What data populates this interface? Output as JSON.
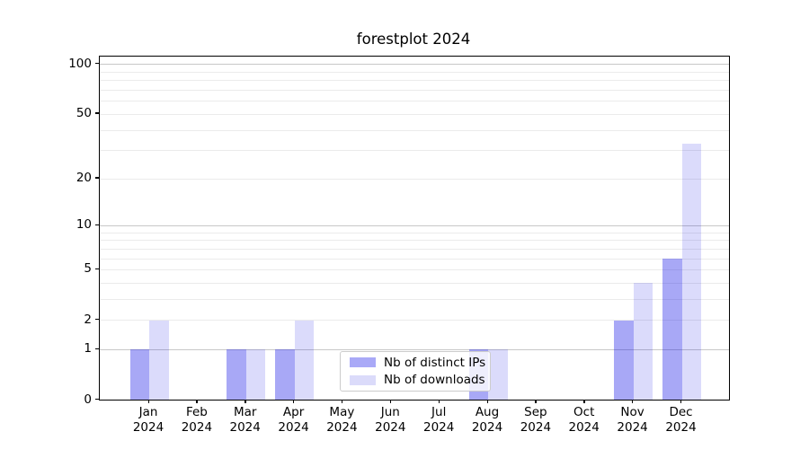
{
  "title": "forestplot 2024",
  "chart_data": {
    "type": "bar",
    "title": "forestplot 2024",
    "categories": [
      "Jan 2024",
      "Feb 2024",
      "Mar 2024",
      "Apr 2024",
      "May 2024",
      "Jun 2024",
      "Jul 2024",
      "Aug 2024",
      "Sep 2024",
      "Oct 2024",
      "Nov 2024",
      "Dec 2024"
    ],
    "x_tick_labels": [
      {
        "month": "Jan",
        "year": "2024"
      },
      {
        "month": "Feb",
        "year": "2024"
      },
      {
        "month": "Mar",
        "year": "2024"
      },
      {
        "month": "Apr",
        "year": "2024"
      },
      {
        "month": "May",
        "year": "2024"
      },
      {
        "month": "Jun",
        "year": "2024"
      },
      {
        "month": "Jul",
        "year": "2024"
      },
      {
        "month": "Aug",
        "year": "2024"
      },
      {
        "month": "Sep",
        "year": "2024"
      },
      {
        "month": "Oct",
        "year": "2024"
      },
      {
        "month": "Nov",
        "year": "2024"
      },
      {
        "month": "Dec",
        "year": "2024"
      }
    ],
    "series": [
      {
        "name": "Nb of distinct IPs",
        "color": "#a9a9f7",
        "fill": "rgba(0,0,230,0.34)",
        "values": [
          1,
          0,
          1,
          1,
          0,
          0,
          0,
          1,
          0,
          0,
          2,
          6
        ]
      },
      {
        "name": "Nb of downloads",
        "color": "#dbdbfa",
        "fill": "rgba(0,0,230,0.14)",
        "values": [
          2,
          0,
          1,
          2,
          0,
          0,
          0,
          1,
          0,
          0,
          4,
          33
        ]
      }
    ],
    "xlabel": "",
    "ylabel": "",
    "y_axis": {
      "scale": "log1p",
      "ticks": [
        0,
        1,
        2,
        5,
        10,
        20,
        50,
        100
      ],
      "major_gridlines": [
        1,
        10,
        100
      ],
      "minor_gridlines": [
        2,
        3,
        4,
        5,
        6,
        7,
        8,
        9,
        20,
        30,
        40,
        50,
        60,
        70,
        80,
        90
      ],
      "ylim": [
        0,
        111
      ]
    },
    "legend": {
      "position": "lower center",
      "entries": [
        "Nb of distinct IPs",
        "Nb of downloads"
      ]
    },
    "grid": "on"
  },
  "colors": {
    "grid_major": "#c8c8c8",
    "grid_minor": "#ebebeb",
    "axis": "#000000",
    "background": "#ffffff"
  }
}
